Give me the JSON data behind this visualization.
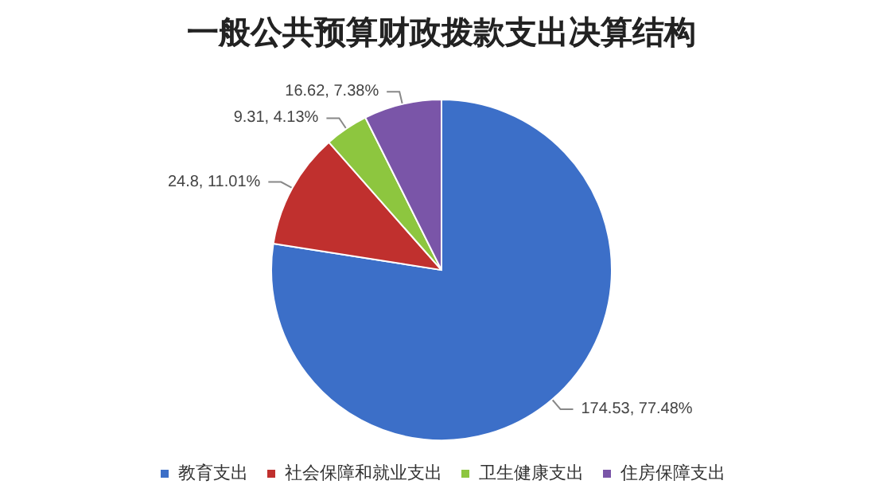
{
  "chart_data": {
    "type": "pie",
    "title": "一般公共预算财政拨款支出决算结构",
    "categories": [
      "教育支出",
      "社会保障和就业支出",
      "卫生健康支出",
      "住房保障支出"
    ],
    "values": [
      174.53,
      24.8,
      9.31,
      16.62
    ],
    "value_labels": [
      "174.53, 77.48%",
      "24.8, 11.01%",
      "9.31, 4.13%",
      "16.62, 7.38%"
    ],
    "colors": [
      "#3c6fc8",
      "#c0302e",
      "#8dc63f",
      "#7a55a8"
    ],
    "legend": "bottom"
  }
}
